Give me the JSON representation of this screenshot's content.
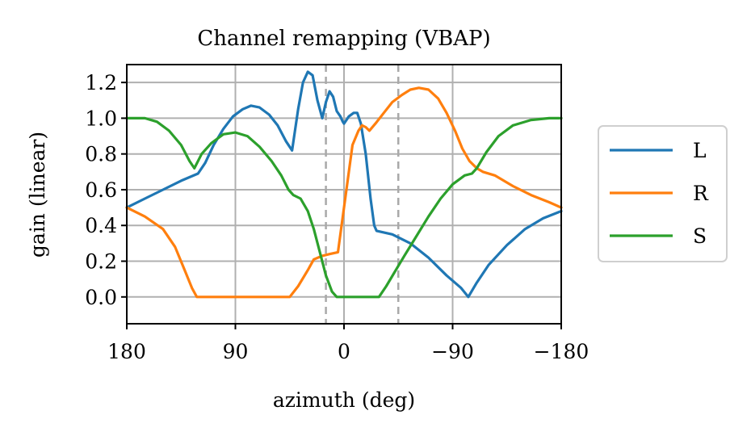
{
  "chart_data": {
    "type": "line",
    "title": "Channel remapping (VBAP)",
    "xlabel": "azimuth (deg)",
    "ylabel": "gain (linear)",
    "xlim": [
      180,
      -180
    ],
    "ylim": [
      -0.15,
      1.3
    ],
    "x_ticks": [
      180,
      90,
      0,
      -90,
      -180
    ],
    "x_tick_labels": [
      "180",
      "90",
      "0",
      "−90",
      "−180"
    ],
    "y_ticks": [
      0.0,
      0.2,
      0.4,
      0.6,
      0.8,
      1.0,
      1.2
    ],
    "y_tick_labels": [
      "0.0",
      "0.2",
      "0.4",
      "0.6",
      "0.8",
      "1.0",
      "1.2"
    ],
    "grid": true,
    "legend_position": "outside-right",
    "vertical_lines": [
      15,
      -45
    ],
    "series": [
      {
        "name": "L",
        "color": "#1f77b4",
        "points": [
          [
            180,
            0.5
          ],
          [
            165,
            0.55
          ],
          [
            150,
            0.6
          ],
          [
            135,
            0.65
          ],
          [
            121,
            0.69
          ],
          [
            115,
            0.75
          ],
          [
            108,
            0.85
          ],
          [
            100,
            0.94
          ],
          [
            92,
            1.01
          ],
          [
            84,
            1.05
          ],
          [
            77,
            1.07
          ],
          [
            70,
            1.06
          ],
          [
            62,
            1.02
          ],
          [
            55,
            0.96
          ],
          [
            48,
            0.87
          ],
          [
            43,
            0.82
          ],
          [
            38,
            1.05
          ],
          [
            34,
            1.2
          ],
          [
            30,
            1.26
          ],
          [
            26,
            1.24
          ],
          [
            22,
            1.1
          ],
          [
            18,
            1.0
          ],
          [
            15,
            1.09
          ],
          [
            12,
            1.15
          ],
          [
            9,
            1.12
          ],
          [
            6,
            1.04
          ],
          [
            3,
            1.01
          ],
          [
            1,
            0.98
          ],
          [
            0,
            0.97
          ],
          [
            -4,
            1.01
          ],
          [
            -8,
            1.03
          ],
          [
            -11,
            1.03
          ],
          [
            -14,
            0.97
          ],
          [
            -18,
            0.8
          ],
          [
            -22,
            0.55
          ],
          [
            -25,
            0.4
          ],
          [
            -27,
            0.37
          ],
          [
            -40,
            0.35
          ],
          [
            -55,
            0.3
          ],
          [
            -70,
            0.22
          ],
          [
            -85,
            0.12
          ],
          [
            -97,
            0.05
          ],
          [
            -103,
            0.0
          ],
          [
            -110,
            0.08
          ],
          [
            -120,
            0.18
          ],
          [
            -135,
            0.29
          ],
          [
            -150,
            0.38
          ],
          [
            -165,
            0.44
          ],
          [
            -180,
            0.48
          ]
        ]
      },
      {
        "name": "R",
        "color": "#ff7f0e",
        "points": [
          [
            180,
            0.5
          ],
          [
            165,
            0.45
          ],
          [
            150,
            0.38
          ],
          [
            140,
            0.28
          ],
          [
            132,
            0.15
          ],
          [
            126,
            0.05
          ],
          [
            122,
            0.0
          ],
          [
            100,
            0.0
          ],
          [
            80,
            0.0
          ],
          [
            60,
            0.0
          ],
          [
            45,
            0.0
          ],
          [
            38,
            0.06
          ],
          [
            30,
            0.15
          ],
          [
            25,
            0.21
          ],
          [
            18,
            0.23
          ],
          [
            12,
            0.24
          ],
          [
            5,
            0.25
          ],
          [
            2,
            0.4
          ],
          [
            -3,
            0.65
          ],
          [
            -7,
            0.85
          ],
          [
            -12,
            0.93
          ],
          [
            -15,
            0.96
          ],
          [
            -18,
            0.95
          ],
          [
            -21,
            0.93
          ],
          [
            -26,
            0.97
          ],
          [
            -33,
            1.03
          ],
          [
            -40,
            1.09
          ],
          [
            -48,
            1.13
          ],
          [
            -55,
            1.16
          ],
          [
            -62,
            1.17
          ],
          [
            -70,
            1.16
          ],
          [
            -78,
            1.11
          ],
          [
            -85,
            1.03
          ],
          [
            -92,
            0.93
          ],
          [
            -98,
            0.83
          ],
          [
            -104,
            0.76
          ],
          [
            -110,
            0.72
          ],
          [
            -115,
            0.7
          ],
          [
            -125,
            0.68
          ],
          [
            -140,
            0.62
          ],
          [
            -155,
            0.57
          ],
          [
            -170,
            0.53
          ],
          [
            -180,
            0.5
          ]
        ]
      },
      {
        "name": "S",
        "color": "#2ca02c",
        "points": [
          [
            180,
            1.0
          ],
          [
            165,
            1.0
          ],
          [
            155,
            0.98
          ],
          [
            145,
            0.93
          ],
          [
            135,
            0.85
          ],
          [
            128,
            0.76
          ],
          [
            124,
            0.72
          ],
          [
            118,
            0.8
          ],
          [
            110,
            0.86
          ],
          [
            100,
            0.91
          ],
          [
            90,
            0.92
          ],
          [
            80,
            0.9
          ],
          [
            70,
            0.84
          ],
          [
            60,
            0.76
          ],
          [
            52,
            0.68
          ],
          [
            46,
            0.6
          ],
          [
            42,
            0.57
          ],
          [
            36,
            0.55
          ],
          [
            30,
            0.48
          ],
          [
            25,
            0.38
          ],
          [
            20,
            0.25
          ],
          [
            15,
            0.12
          ],
          [
            10,
            0.03
          ],
          [
            6,
            0.0
          ],
          [
            0,
            0.0
          ],
          [
            -10,
            0.0
          ],
          [
            -20,
            0.0
          ],
          [
            -29,
            0.0
          ],
          [
            -35,
            0.06
          ],
          [
            -42,
            0.14
          ],
          [
            -50,
            0.23
          ],
          [
            -60,
            0.34
          ],
          [
            -70,
            0.45
          ],
          [
            -80,
            0.55
          ],
          [
            -90,
            0.63
          ],
          [
            -100,
            0.68
          ],
          [
            -106,
            0.69
          ],
          [
            -110,
            0.72
          ],
          [
            -118,
            0.81
          ],
          [
            -128,
            0.9
          ],
          [
            -140,
            0.96
          ],
          [
            -155,
            0.99
          ],
          [
            -170,
            1.0
          ],
          [
            -180,
            1.0
          ]
        ]
      }
    ]
  }
}
